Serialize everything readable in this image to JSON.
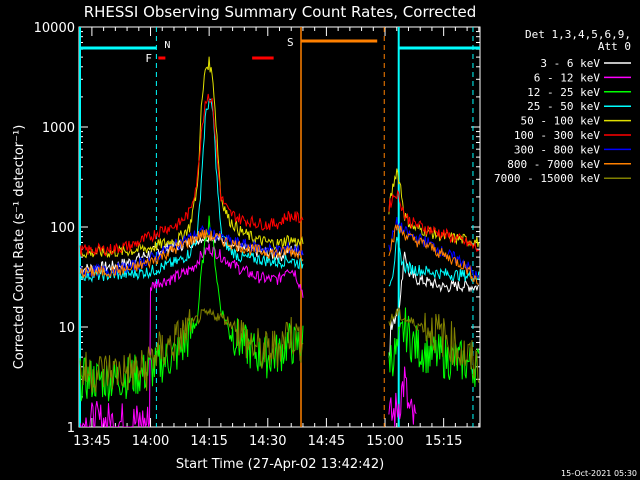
{
  "chart_data": {
    "type": "line",
    "title": "RHESSI Observing Summary Count Rates, Corrected",
    "xlabel": "Start Time (27-Apr-02 13:42:42)",
    "ylabel": "Corrected Count Rate (s⁻¹ detector⁻¹)",
    "yscale": "log",
    "ylim": [
      1,
      10000
    ],
    "xlim_minutes": [
      -3.3,
      99.3
    ],
    "xticks": [
      {
        "m": 0,
        "label": "13:45"
      },
      {
        "m": 15,
        "label": "14:00"
      },
      {
        "m": 30,
        "label": "14:15"
      },
      {
        "m": 45,
        "label": "14:30"
      },
      {
        "m": 60,
        "label": "14:45"
      },
      {
        "m": 75,
        "label": "15:00"
      },
      {
        "m": 90,
        "label": "15:15"
      }
    ],
    "yticks": [
      {
        "v": 1,
        "label": "1"
      },
      {
        "v": 10,
        "label": "10"
      },
      {
        "v": 100,
        "label": "100"
      },
      {
        "v": 1000,
        "label": "1000"
      },
      {
        "v": 10000,
        "label": "10000"
      }
    ],
    "legend_header": [
      "Det 1,3,4,5,6,9,",
      "Att 0"
    ],
    "legend_position": "right",
    "footer_date": "15-Oct-2021 05:30",
    "segments": [
      [
        -3.3,
        54.5
      ],
      [
        76.0,
        99.3
      ]
    ],
    "series": [
      {
        "name": "3 - 6 keV",
        "color": "#ffffff",
        "x": [
          -3,
          5,
          10,
          15,
          18,
          22,
          24,
          26,
          28,
          30,
          32,
          34,
          37,
          40,
          45,
          48,
          50,
          52,
          54,
          76,
          77.5,
          79,
          80,
          81,
          83,
          86,
          90,
          95,
          99
        ],
        "y": [
          38,
          40,
          45,
          55,
          60,
          65,
          68,
          72,
          78,
          82,
          78,
          72,
          65,
          58,
          55,
          50,
          58,
          60,
          55,
          8,
          12,
          20,
          60,
          35,
          30,
          28,
          25,
          26,
          25
        ]
      },
      {
        "name": "6 - 12 keV",
        "color": "#ff00ff",
        "x": [
          -3,
          8,
          13,
          14.9,
          15,
          17,
          20,
          24,
          26,
          28,
          30,
          32,
          35,
          38,
          42,
          45,
          48,
          50,
          52,
          54,
          76,
          77,
          78,
          79,
          80,
          81,
          82,
          83
        ],
        "y": [
          1.1,
          1.1,
          1.1,
          1.1,
          25,
          28,
          30,
          35,
          40,
          52,
          62,
          55,
          45,
          38,
          32,
          30,
          30,
          40,
          35,
          22,
          1.2,
          1.3,
          1.5,
          2,
          3,
          1.5,
          1.2,
          1.1
        ]
      },
      {
        "name": "12 - 25 keV",
        "color": "#00ff00",
        "x": [
          -3,
          5,
          10,
          14,
          18,
          22,
          25,
          27,
          28,
          29,
          30,
          31,
          32,
          33,
          35,
          38,
          42,
          45,
          48,
          50,
          52,
          54,
          76,
          78,
          80,
          82,
          84,
          86,
          90,
          95,
          99
        ],
        "y": [
          3,
          3,
          3.2,
          3.5,
          4.5,
          5.5,
          8,
          12,
          35,
          70,
          120,
          70,
          30,
          15,
          10,
          7,
          5.5,
          5,
          5.5,
          7,
          6.5,
          7,
          5,
          5.5,
          10,
          7,
          6,
          5.5,
          5,
          4.5,
          4
        ]
      },
      {
        "name": "25 - 50 keV",
        "color": "#00ffff",
        "x": [
          -3,
          5,
          10,
          15,
          18,
          22,
          25,
          27,
          28,
          29,
          30,
          31,
          32,
          33,
          35,
          38,
          42,
          45,
          48,
          50,
          52,
          54,
          76,
          77,
          78,
          79,
          80,
          82,
          86,
          90,
          95,
          99
        ],
        "y": [
          33,
          33,
          34,
          36,
          40,
          45,
          55,
          80,
          300,
          1200,
          1900,
          1400,
          300,
          90,
          60,
          50,
          48,
          46,
          44,
          48,
          45,
          42,
          28,
          35,
          70,
          50,
          40,
          38,
          36,
          34,
          33,
          32
        ]
      },
      {
        "name": "50 - 100 keV",
        "color": "#e0e000",
        "x": [
          -3,
          5,
          10,
          15,
          18,
          22,
          25,
          27,
          28,
          29,
          30,
          31,
          32,
          33,
          35,
          38,
          42,
          45,
          48,
          50,
          52,
          54,
          76,
          77,
          78,
          79,
          80,
          82,
          86,
          90,
          95,
          99
        ],
        "y": [
          55,
          56,
          58,
          62,
          68,
          75,
          100,
          250,
          1500,
          3800,
          4400,
          3000,
          800,
          200,
          120,
          90,
          75,
          70,
          68,
          75,
          72,
          68,
          150,
          250,
          380,
          250,
          130,
          100,
          90,
          80,
          75,
          70
        ]
      },
      {
        "name": "100 - 300 keV",
        "color": "#ff0000",
        "x": [
          -3,
          5,
          10,
          15,
          18,
          22,
          25,
          27,
          28,
          29,
          30,
          31,
          32,
          33,
          35,
          38,
          42,
          45,
          48,
          50,
          52,
          54,
          76,
          77,
          78,
          79,
          80,
          82,
          86,
          90,
          95,
          99
        ],
        "y": [
          58,
          60,
          65,
          80,
          95,
          105,
          140,
          300,
          900,
          1800,
          2100,
          1600,
          500,
          200,
          140,
          120,
          110,
          105,
          110,
          130,
          125,
          120,
          160,
          200,
          220,
          180,
          130,
          110,
          95,
          85,
          72,
          60
        ]
      },
      {
        "name": "300 - 800 keV",
        "color": "#0000ff",
        "x": [
          -3,
          5,
          10,
          15,
          18,
          22,
          25,
          27,
          28,
          30,
          32,
          34,
          37,
          40,
          45,
          48,
          50,
          52,
          54,
          76,
          78,
          80,
          82,
          86,
          90,
          95,
          99
        ],
        "y": [
          36,
          37,
          40,
          48,
          56,
          68,
          78,
          85,
          90,
          88,
          82,
          75,
          70,
          65,
          60,
          58,
          62,
          60,
          56,
          60,
          110,
          90,
          80,
          70,
          55,
          45,
          30
        ]
      },
      {
        "name": "800 - 7000 keV",
        "color": "#ff8000",
        "x": [
          -3,
          5,
          10,
          15,
          18,
          22,
          25,
          27,
          28,
          30,
          32,
          34,
          37,
          40,
          45,
          48,
          50,
          52,
          54,
          76,
          78,
          80,
          82,
          86,
          90,
          95,
          99
        ],
        "y": [
          35,
          36,
          38,
          45,
          52,
          62,
          72,
          80,
          85,
          82,
          78,
          72,
          66,
          60,
          56,
          54,
          58,
          56,
          52,
          58,
          100,
          85,
          75,
          65,
          52,
          42,
          28
        ]
      },
      {
        "name": "7000 - 15000 keV",
        "color": "#808000",
        "x": [
          -3,
          5,
          10,
          14,
          15,
          17,
          20,
          23,
          26,
          28,
          30,
          32,
          34,
          37,
          40,
          44,
          48,
          50,
          52,
          54,
          76,
          78,
          80,
          82,
          85,
          88,
          92,
          96,
          99
        ],
        "y": [
          3.5,
          3.6,
          3.6,
          3.7,
          5,
          5.5,
          6.5,
          8,
          11,
          13,
          13.5,
          13,
          12,
          10,
          7,
          5.5,
          6.5,
          9,
          8,
          7,
          11,
          14,
          12,
          11,
          10,
          9,
          7,
          5,
          4
        ]
      }
    ],
    "annotations": {
      "saa": {
        "label": "N",
        "color": "#00ffff",
        "bands": [
          [
            -3.3,
            16.5
          ],
          [
            78.5,
            99.3
          ]
        ],
        "lines": [
          16.5,
          78.5,
          97.5
        ],
        "edge_line": -3.3
      },
      "flare": {
        "label": "F",
        "color": "#ff0000",
        "bands": [
          [
            17,
            18.8
          ],
          [
            41,
            46.5
          ]
        ]
      },
      "attenuator": {
        "label": "S",
        "color": "#ff8000",
        "bands": [
          [
            53.5,
            73
          ]
        ],
        "solid_line": 53.5,
        "dashed_line": 74.8
      }
    }
  }
}
